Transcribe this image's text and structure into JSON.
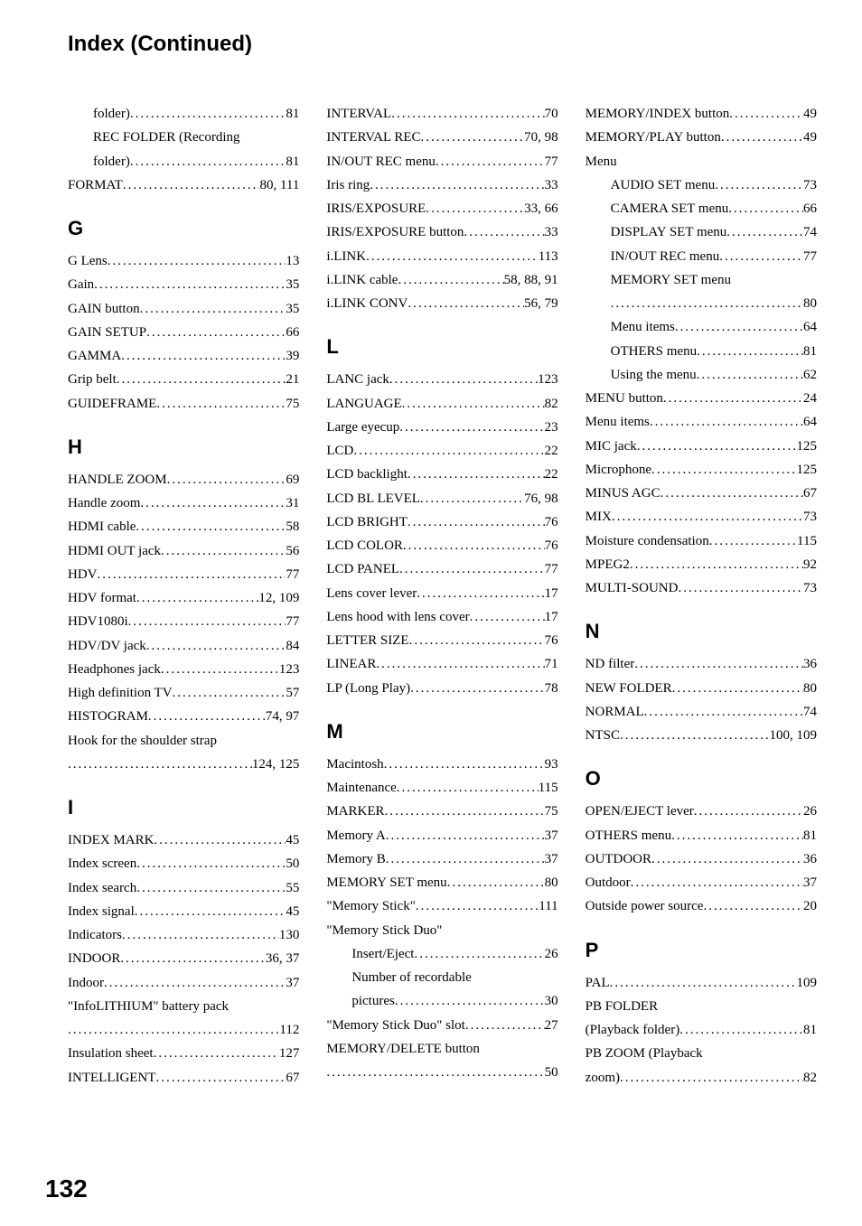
{
  "header": "Index (Continued)",
  "page_number": "132",
  "dot_fill": "........................................................................",
  "columns": [
    {
      "sections": [
        {
          "heading": null,
          "entries": [
            {
              "label": "folder)",
              "page": "81",
              "indent": true
            },
            {
              "label": "REC FOLDER (Recording",
              "page": null,
              "indent": true,
              "cont_label": "folder)",
              "cont_page": "81"
            },
            {
              "label": "FORMAT",
              "page": "80, 111"
            }
          ]
        },
        {
          "heading": "G",
          "entries": [
            {
              "label": "G Lens",
              "page": "13"
            },
            {
              "label": "Gain",
              "page": "35"
            },
            {
              "label": "GAIN button",
              "page": "35"
            },
            {
              "label": "GAIN SETUP",
              "page": "66"
            },
            {
              "label": "GAMMA",
              "page": "39"
            },
            {
              "label": "Grip belt",
              "page": "21"
            },
            {
              "label": "GUIDEFRAME",
              "page": "75"
            }
          ]
        },
        {
          "heading": "H",
          "entries": [
            {
              "label": "HANDLE ZOOM",
              "page": "69"
            },
            {
              "label": "Handle zoom",
              "page": "31"
            },
            {
              "label": "HDMI cable",
              "page": "58"
            },
            {
              "label": "HDMI OUT jack",
              "page": "56"
            },
            {
              "label": "HDV",
              "page": "77"
            },
            {
              "label": "HDV format",
              "page": "12, 109"
            },
            {
              "label": "HDV1080i",
              "page": "77"
            },
            {
              "label": "HDV/DV jack",
              "page": "84"
            },
            {
              "label": "Headphones jack",
              "page": "123"
            },
            {
              "label": "High definition TV",
              "page": "57"
            },
            {
              "label": "HISTOGRAM",
              "page": "74, 97"
            },
            {
              "label": "Hook for the shoulder strap",
              "page": null,
              "cont_label": "",
              "cont_page": "124, 125"
            }
          ]
        },
        {
          "heading": "I",
          "entries": [
            {
              "label": "INDEX MARK",
              "page": "45"
            },
            {
              "label": "Index screen",
              "page": "50"
            },
            {
              "label": "Index search",
              "page": "55"
            },
            {
              "label": "Index signal",
              "page": "45"
            },
            {
              "label": "Indicators",
              "page": "130"
            },
            {
              "label": "INDOOR",
              "page": "36, 37"
            },
            {
              "label": "Indoor",
              "page": "37"
            },
            {
              "label": "\"InfoLITHIUM\" battery pack",
              "page": null,
              "cont_label": "",
              "cont_page": "112"
            },
            {
              "label": "Insulation sheet",
              "page": "127"
            },
            {
              "label": "INTELLIGENT",
              "page": "67"
            }
          ]
        }
      ]
    },
    {
      "sections": [
        {
          "heading": null,
          "entries": [
            {
              "label": "INTERVAL",
              "page": "70"
            },
            {
              "label": "INTERVAL REC",
              "page": "70, 98"
            },
            {
              "label": "IN/OUT REC menu",
              "page": "77"
            },
            {
              "label": "Iris ring",
              "page": "33"
            },
            {
              "label": "IRIS/EXPOSURE",
              "page": "33, 66"
            },
            {
              "label": "IRIS/EXPOSURE button",
              "page": "33"
            },
            {
              "label": "i.LINK",
              "page": "113"
            },
            {
              "label": "i.LINK cable",
              "page": "58, 88, 91"
            },
            {
              "label": "i.LINK CONV",
              "page": "56, 79"
            }
          ]
        },
        {
          "heading": "L",
          "entries": [
            {
              "label": "LANC jack",
              "page": "123"
            },
            {
              "label": "LANGUAGE",
              "page": "82"
            },
            {
              "label": "Large eyecup",
              "page": "23"
            },
            {
              "label": "LCD",
              "page": "22"
            },
            {
              "label": "LCD backlight",
              "page": "22"
            },
            {
              "label": "LCD BL LEVEL",
              "page": "76, 98"
            },
            {
              "label": "LCD BRIGHT",
              "page": "76"
            },
            {
              "label": "LCD COLOR",
              "page": "76"
            },
            {
              "label": "LCD PANEL",
              "page": "77"
            },
            {
              "label": "Lens cover lever",
              "page": "17"
            },
            {
              "label": "Lens hood with lens cover",
              "page": "17"
            },
            {
              "label": "LETTER SIZE",
              "page": "76"
            },
            {
              "label": "LINEAR",
              "page": "71"
            },
            {
              "label": "LP (Long Play)",
              "page": "78"
            }
          ]
        },
        {
          "heading": "M",
          "entries": [
            {
              "label": "Macintosh",
              "page": "93"
            },
            {
              "label": "Maintenance",
              "page": "115"
            },
            {
              "label": "MARKER",
              "page": "75"
            },
            {
              "label": "Memory A",
              "page": "37"
            },
            {
              "label": "Memory B",
              "page": "37"
            },
            {
              "label": "MEMORY SET menu",
              "page": "80"
            },
            {
              "label": "\"Memory Stick\"",
              "page": "111"
            },
            {
              "label": "\"Memory Stick Duo\"",
              "page": null
            },
            {
              "label": "Insert/Eject",
              "page": "26",
              "indent": true
            },
            {
              "label": "Number of recordable",
              "page": null,
              "indent": true,
              "cont_label": "pictures",
              "cont_page": "30"
            },
            {
              "label": "\"Memory Stick Duo\" slot",
              "page": "27"
            },
            {
              "label": "MEMORY/DELETE button",
              "page": null,
              "cont_label": "",
              "cont_page": "50"
            }
          ]
        }
      ]
    },
    {
      "sections": [
        {
          "heading": null,
          "entries": [
            {
              "label": "MEMORY/INDEX button",
              "page": "49"
            },
            {
              "label": "MEMORY/PLAY button",
              "page": "49"
            },
            {
              "label": "Menu",
              "page": null
            },
            {
              "label": "AUDIO SET menu",
              "page": "73",
              "indent": true
            },
            {
              "label": "CAMERA SET menu",
              "page": "66",
              "indent": true
            },
            {
              "label": "DISPLAY SET menu",
              "page": "74",
              "indent": true
            },
            {
              "label": "IN/OUT REC menu",
              "page": "77",
              "indent": true
            },
            {
              "label": "MEMORY SET menu",
              "page": null,
              "indent": true,
              "cont_label": "",
              "cont_page": "80"
            },
            {
              "label": "Menu items",
              "page": "64",
              "indent": true
            },
            {
              "label": "OTHERS menu",
              "page": "81",
              "indent": true
            },
            {
              "label": "Using the menu",
              "page": "62",
              "indent": true
            },
            {
              "label": "MENU button",
              "page": "24"
            },
            {
              "label": "Menu items",
              "page": "64"
            },
            {
              "label": "MIC jack",
              "page": "125"
            },
            {
              "label": "Microphone",
              "page": "125"
            },
            {
              "label": "MINUS AGC",
              "page": "67"
            },
            {
              "label": "MIX",
              "page": "73"
            },
            {
              "label": "Moisture condensation",
              "page": "115"
            },
            {
              "label": "MPEG2",
              "page": "92"
            },
            {
              "label": "MULTI-SOUND",
              "page": "73"
            }
          ]
        },
        {
          "heading": "N",
          "entries": [
            {
              "label": "ND filter",
              "page": "36"
            },
            {
              "label": "NEW FOLDER",
              "page": "80"
            },
            {
              "label": "NORMAL",
              "page": "74"
            },
            {
              "label": "NTSC",
              "page": "100, 109"
            }
          ]
        },
        {
          "heading": "O",
          "entries": [
            {
              "label": "OPEN/EJECT lever",
              "page": "26"
            },
            {
              "label": "OTHERS menu",
              "page": "81"
            },
            {
              "label": "OUTDOOR",
              "page": "36"
            },
            {
              "label": "Outdoor",
              "page": "37"
            },
            {
              "label": "Outside power source",
              "page": "20"
            }
          ]
        },
        {
          "heading": "P",
          "entries": [
            {
              "label": "PAL",
              "page": "109"
            },
            {
              "label": "PB FOLDER",
              "page": null,
              "cont_label": "(Playback folder)",
              "cont_page": "81"
            },
            {
              "label": "PB ZOOM (Playback",
              "page": null,
              "cont_label": "zoom)",
              "cont_page": "82"
            }
          ]
        }
      ]
    }
  ]
}
